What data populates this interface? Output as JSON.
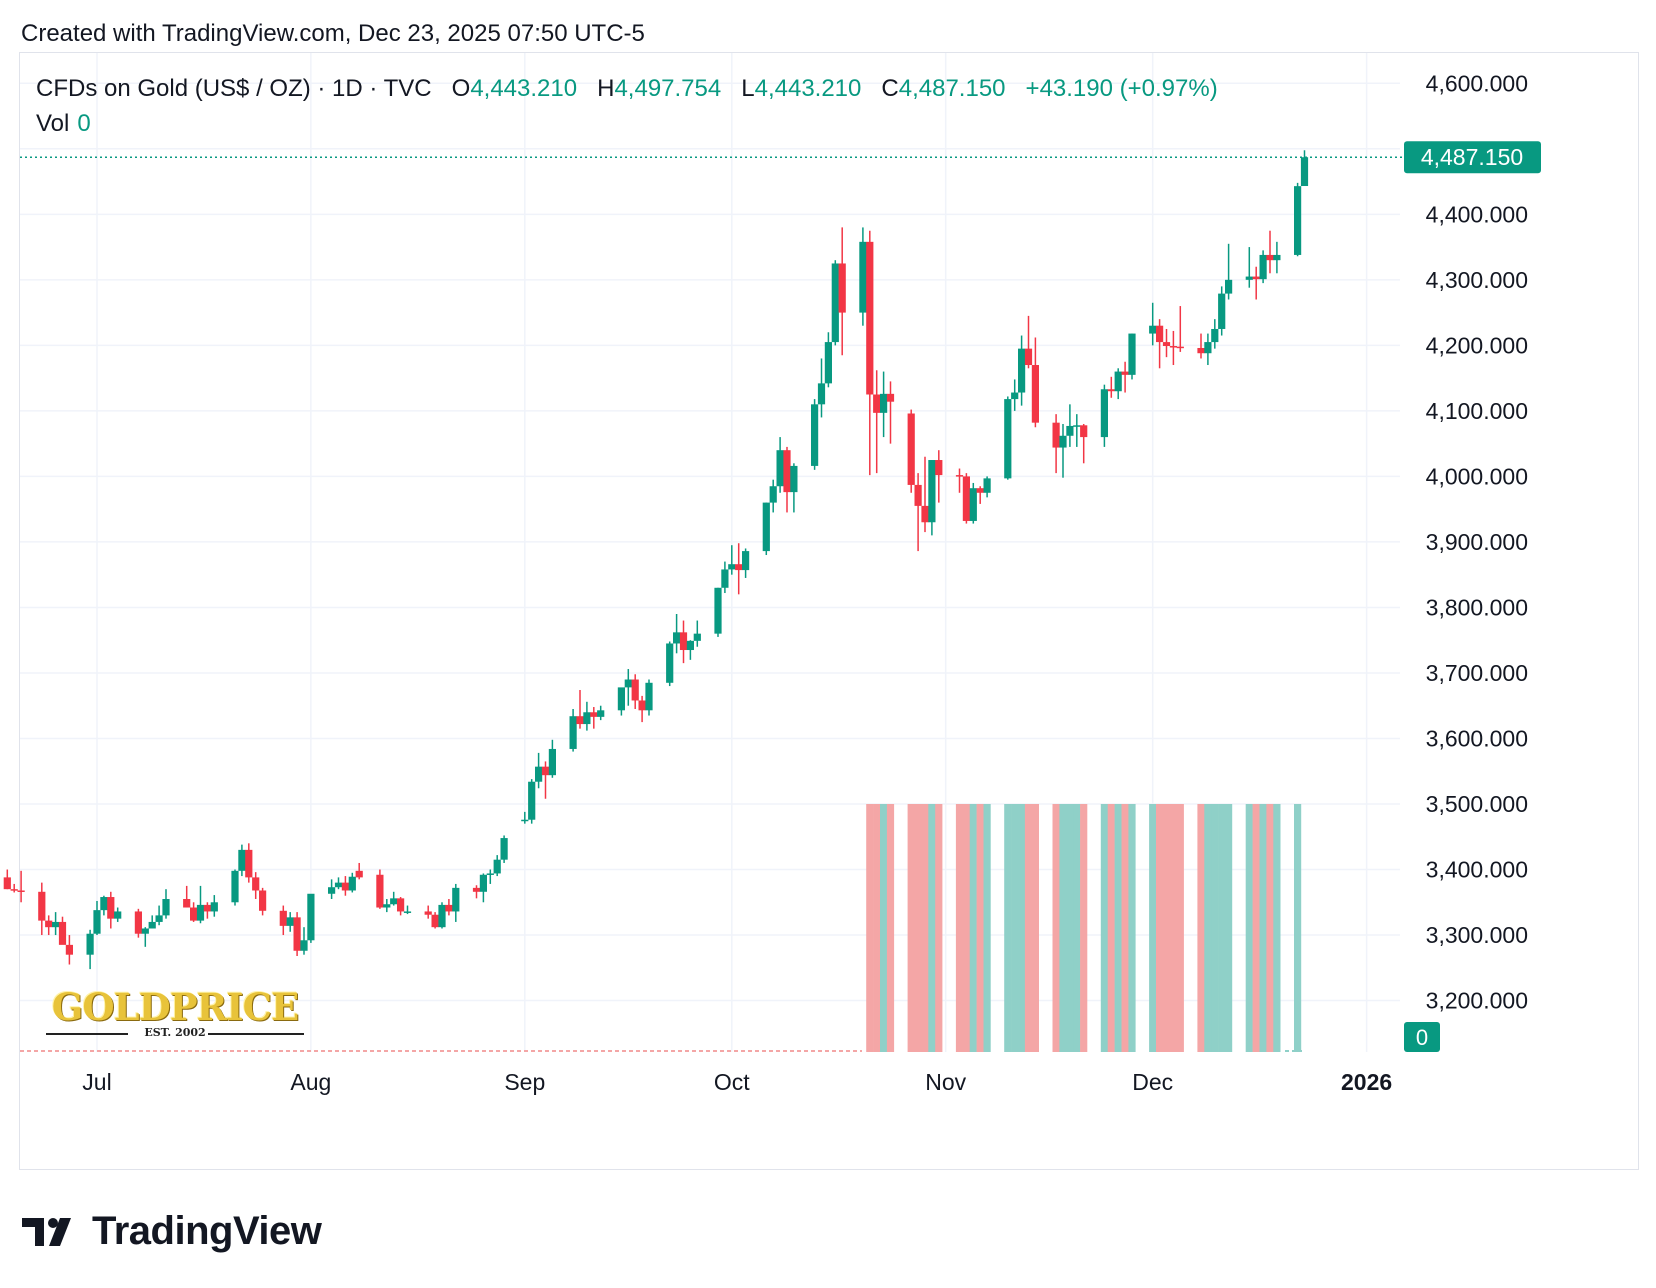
{
  "header": {
    "credit": "Created with TradingView.com, Dec 23, 2025 07:50 UTC-5"
  },
  "legend": {
    "symbol": "CFDs on Gold (US$ / OZ) · 1D · TVC",
    "open_label": "O",
    "open_value": "4,443.210",
    "high_label": "H",
    "high_value": "4,497.754",
    "low_label": "L",
    "low_value": "4,443.210",
    "close_label": "C",
    "close_value": "4,487.150",
    "change": "+43.190 (+0.97%)",
    "vol_label": "Vol",
    "vol_value": "0"
  },
  "watermark": {
    "brand": "GOLDPRICE",
    "tagline": "EST. 2002"
  },
  "footer": {
    "brand": "TradingView"
  },
  "colors": {
    "up": "#089981",
    "down": "#f23645",
    "vol_up": "#8fd0c8",
    "vol_down": "#f4a6a6",
    "grid": "#f0f3fa",
    "text": "#131722"
  },
  "chart_data": {
    "type": "candlestick",
    "timeframe": "1D",
    "ylim": [
      3120,
      4630
    ],
    "y_ticks": [
      3200,
      3300,
      3400,
      3500,
      3600,
      3700,
      3800,
      3900,
      4000,
      4100,
      4200,
      4300,
      4400,
      4600
    ],
    "y_tick_labels": [
      "3,200.000",
      "3,300.000",
      "3,400.000",
      "3,500.000",
      "3,600.000",
      "3,700.000",
      "3,800.000",
      "3,900.000",
      "4,000.000",
      "4,100.000",
      "4,200.000",
      "4,300.000",
      "4,400.000",
      "4,600.000"
    ],
    "x_tick_labels": [
      {
        "label": "Jul",
        "date": "2025-07-01"
      },
      {
        "label": "Aug",
        "date": "2025-08-01"
      },
      {
        "label": "Sep",
        "date": "2025-09-01"
      },
      {
        "label": "Oct",
        "date": "2025-10-01"
      },
      {
        "label": "Nov",
        "date": "2025-11-01"
      },
      {
        "label": "Dec",
        "date": "2025-12-01"
      },
      {
        "label": "2026",
        "date": "2026-01-01"
      }
    ],
    "last_price": 4487.15,
    "last_price_label": "4,487.150",
    "volume_label": "0",
    "volume_bars_from": "2025-10-21",
    "candles": [
      [
        "2025-06-18",
        3388,
        3400,
        3370,
        3370
      ],
      [
        "2025-06-19",
        3370,
        3378,
        3365,
        3368
      ],
      [
        "2025-06-20",
        3368,
        3398,
        3350,
        3366
      ],
      [
        "2025-06-23",
        3366,
        3380,
        3300,
        3322
      ],
      [
        "2025-06-24",
        3322,
        3330,
        3300,
        3312
      ],
      [
        "2025-06-25",
        3312,
        3335,
        3300,
        3320
      ],
      [
        "2025-06-26",
        3320,
        3328,
        3290,
        3285
      ],
      [
        "2025-06-27",
        3285,
        3300,
        3255,
        3270
      ],
      [
        "2025-06-30",
        3270,
        3308,
        3248,
        3302
      ],
      [
        "2025-07-01",
        3302,
        3352,
        3300,
        3338
      ],
      [
        "2025-07-02",
        3338,
        3360,
        3330,
        3358
      ],
      [
        "2025-07-03",
        3358,
        3366,
        3310,
        3325
      ],
      [
        "2025-07-04",
        3325,
        3342,
        3320,
        3336
      ],
      [
        "2025-07-07",
        3336,
        3340,
        3296,
        3302
      ],
      [
        "2025-07-08",
        3302,
        3312,
        3282,
        3310
      ],
      [
        "2025-07-09",
        3310,
        3330,
        3310,
        3320
      ],
      [
        "2025-07-10",
        3320,
        3345,
        3315,
        3330
      ],
      [
        "2025-07-11",
        3330,
        3370,
        3325,
        3355
      ],
      [
        "2025-07-14",
        3355,
        3375,
        3342,
        3342
      ],
      [
        "2025-07-15",
        3342,
        3350,
        3320,
        3322
      ],
      [
        "2025-07-16",
        3322,
        3375,
        3318,
        3346
      ],
      [
        "2025-07-17",
        3346,
        3350,
        3325,
        3336
      ],
      [
        "2025-07-18",
        3336,
        3361,
        3328,
        3350
      ],
      [
        "2025-07-21",
        3350,
        3400,
        3345,
        3398
      ],
      [
        "2025-07-22",
        3398,
        3438,
        3390,
        3430
      ],
      [
        "2025-07-23",
        3430,
        3440,
        3380,
        3388
      ],
      [
        "2025-07-24",
        3388,
        3396,
        3355,
        3368
      ],
      [
        "2025-07-25",
        3368,
        3372,
        3330,
        3337
      ],
      [
        "2025-07-28",
        3337,
        3345,
        3300,
        3314
      ],
      [
        "2025-07-29",
        3314,
        3335,
        3305,
        3327
      ],
      [
        "2025-07-30",
        3327,
        3335,
        3268,
        3276
      ],
      [
        "2025-07-31",
        3276,
        3312,
        3270,
        3292
      ],
      [
        "2025-08-01",
        3292,
        3355,
        3288,
        3363
      ],
      [
        "2025-08-04",
        3363,
        3385,
        3355,
        3373
      ],
      [
        "2025-08-05",
        3373,
        3388,
        3370,
        3380
      ],
      [
        "2025-08-06",
        3380,
        3390,
        3360,
        3368
      ],
      [
        "2025-08-07",
        3368,
        3395,
        3365,
        3389
      ],
      [
        "2025-08-08",
        3398,
        3410,
        3385,
        3388
      ],
      [
        "2025-08-11",
        3392,
        3400,
        3340,
        3342
      ],
      [
        "2025-08-12",
        3342,
        3355,
        3335,
        3347
      ],
      [
        "2025-08-13",
        3347,
        3366,
        3345,
        3356
      ],
      [
        "2025-08-14",
        3356,
        3358,
        3330,
        3336
      ],
      [
        "2025-08-15",
        3336,
        3345,
        3332,
        3336
      ],
      [
        "2025-08-18",
        3336,
        3345,
        3325,
        3331
      ],
      [
        "2025-08-19",
        3331,
        3335,
        3310,
        3312
      ],
      [
        "2025-08-20",
        3312,
        3350,
        3310,
        3346
      ],
      [
        "2025-08-21",
        3346,
        3355,
        3330,
        3336
      ],
      [
        "2025-08-22",
        3336,
        3378,
        3320,
        3372
      ],
      [
        "2025-08-25",
        3372,
        3376,
        3356,
        3366
      ],
      [
        "2025-08-26",
        3366,
        3394,
        3350,
        3392
      ],
      [
        "2025-08-27",
        3392,
        3400,
        3378,
        3394
      ],
      [
        "2025-08-28",
        3394,
        3422,
        3390,
        3415
      ],
      [
        "2025-08-29",
        3415,
        3452,
        3410,
        3448
      ],
      [
        "2025-09-01",
        3475,
        3488,
        3470,
        3476
      ],
      [
        "2025-09-02",
        3476,
        3538,
        3470,
        3534
      ],
      [
        "2025-09-03",
        3534,
        3578,
        3524,
        3557
      ],
      [
        "2025-09-04",
        3557,
        3565,
        3508,
        3544
      ],
      [
        "2025-09-05",
        3544,
        3598,
        3540,
        3584
      ],
      [
        "2025-09-08",
        3584,
        3645,
        3580,
        3634
      ],
      [
        "2025-09-09",
        3634,
        3674,
        3615,
        3622
      ],
      [
        "2025-09-10",
        3622,
        3656,
        3612,
        3640
      ],
      [
        "2025-09-11",
        3640,
        3648,
        3615,
        3633
      ],
      [
        "2025-09-12",
        3633,
        3650,
        3628,
        3643
      ],
      [
        "2025-09-15",
        3643,
        3668,
        3635,
        3678
      ],
      [
        "2025-09-16",
        3678,
        3706,
        3650,
        3690
      ],
      [
        "2025-09-17",
        3690,
        3698,
        3645,
        3658
      ],
      [
        "2025-09-18",
        3658,
        3665,
        3625,
        3643
      ],
      [
        "2025-09-19",
        3643,
        3690,
        3635,
        3685
      ],
      [
        "2025-09-22",
        3685,
        3748,
        3680,
        3745
      ],
      [
        "2025-09-23",
        3745,
        3790,
        3730,
        3762
      ],
      [
        "2025-09-24",
        3762,
        3780,
        3715,
        3735
      ],
      [
        "2025-09-25",
        3735,
        3750,
        3720,
        3749
      ],
      [
        "2025-09-26",
        3749,
        3780,
        3740,
        3760
      ],
      [
        "2025-09-29",
        3760,
        3830,
        3755,
        3830
      ],
      [
        "2025-09-30",
        3830,
        3870,
        3822,
        3858
      ],
      [
        "2025-10-01",
        3858,
        3895,
        3850,
        3866
      ],
      [
        "2025-10-02",
        3866,
        3898,
        3820,
        3857
      ],
      [
        "2025-10-03",
        3857,
        3890,
        3845,
        3886
      ],
      [
        "2025-10-06",
        3886,
        3960,
        3880,
        3960
      ],
      [
        "2025-10-07",
        3960,
        3995,
        3945,
        3985
      ],
      [
        "2025-10-08",
        3985,
        4060,
        3975,
        4040
      ],
      [
        "2025-10-09",
        4040,
        4045,
        3945,
        3976
      ],
      [
        "2025-10-10",
        3976,
        4020,
        3945,
        4016
      ],
      [
        "2025-10-13",
        4016,
        4118,
        4010,
        4110
      ],
      [
        "2025-10-14",
        4110,
        4180,
        4090,
        4142
      ],
      [
        "2025-10-15",
        4142,
        4220,
        4136,
        4205
      ],
      [
        "2025-10-16",
        4205,
        4330,
        4200,
        4325
      ],
      [
        "2025-10-17",
        4325,
        4380,
        4185,
        4250
      ],
      [
        "2025-10-20",
        4250,
        4380,
        4230,
        4358
      ],
      [
        "2025-10-21",
        4358,
        4375,
        4002,
        4125
      ],
      [
        "2025-10-22",
        4125,
        4162,
        4005,
        4097
      ],
      [
        "2025-10-23",
        4097,
        4160,
        4060,
        4126
      ],
      [
        "2025-10-24",
        4126,
        4145,
        4050,
        4114
      ],
      [
        "2025-10-27",
        4096,
        4102,
        3975,
        3987
      ],
      [
        "2025-10-28",
        3987,
        4005,
        3886,
        3955
      ],
      [
        "2025-10-29",
        3955,
        4030,
        3915,
        3930
      ],
      [
        "2025-10-30",
        3930,
        4025,
        3910,
        4025
      ],
      [
        "2025-10-31",
        4025,
        4040,
        3960,
        4002
      ],
      [
        "2025-11-03",
        4002,
        4012,
        3975,
        4000
      ],
      [
        "2025-11-04",
        4000,
        4005,
        3928,
        3932
      ],
      [
        "2025-11-05",
        3932,
        3990,
        3928,
        3982
      ],
      [
        "2025-11-06",
        3982,
        3985,
        3958,
        3975
      ],
      [
        "2025-11-07",
        3975,
        4000,
        3968,
        3997
      ],
      [
        "2025-11-10",
        3997,
        4122,
        3995,
        4118
      ],
      [
        "2025-11-11",
        4118,
        4148,
        4100,
        4128
      ],
      [
        "2025-11-12",
        4128,
        4215,
        4108,
        4195
      ],
      [
        "2025-11-13",
        4195,
        4245,
        4165,
        4170
      ],
      [
        "2025-11-14",
        4170,
        4212,
        4075,
        4082
      ],
      [
        "2025-11-17",
        4082,
        4095,
        4005,
        4044
      ],
      [
        "2025-11-18",
        4044,
        4080,
        3998,
        4062
      ],
      [
        "2025-11-19",
        4062,
        4110,
        4045,
        4077
      ],
      [
        "2025-11-20",
        4077,
        4095,
        4045,
        4078
      ],
      [
        "2025-11-21",
        4078,
        4080,
        4020,
        4060
      ],
      [
        "2025-11-24",
        4060,
        4140,
        4045,
        4133
      ],
      [
        "2025-11-25",
        4133,
        4152,
        4120,
        4130
      ],
      [
        "2025-11-26",
        4130,
        4165,
        4118,
        4160
      ],
      [
        "2025-11-27",
        4160,
        4175,
        4128,
        4155
      ],
      [
        "2025-11-28",
        4155,
        4218,
        4148,
        4218
      ],
      [
        "2025-12-01",
        4218,
        4265,
        4200,
        4230
      ],
      [
        "2025-12-02",
        4230,
        4240,
        4165,
        4205
      ],
      [
        "2025-12-03",
        4205,
        4225,
        4182,
        4199
      ],
      [
        "2025-12-04",
        4199,
        4222,
        4170,
        4198
      ],
      [
        "2025-12-05",
        4198,
        4260,
        4190,
        4196
      ],
      [
        "2025-12-08",
        4196,
        4218,
        4180,
        4188
      ],
      [
        "2025-12-09",
        4188,
        4218,
        4170,
        4205
      ],
      [
        "2025-12-10",
        4205,
        4240,
        4195,
        4225
      ],
      [
        "2025-12-11",
        4225,
        4290,
        4215,
        4279
      ],
      [
        "2025-12-12",
        4279,
        4355,
        4270,
        4300
      ],
      [
        "2025-12-15",
        4300,
        4350,
        4288,
        4305
      ],
      [
        "2025-12-16",
        4305,
        4320,
        4270,
        4301
      ],
      [
        "2025-12-17",
        4301,
        4345,
        4295,
        4338
      ],
      [
        "2025-12-18",
        4338,
        4375,
        4310,
        4330
      ],
      [
        "2025-12-19",
        4330,
        4358,
        4310,
        4338
      ],
      [
        "2025-12-22",
        4338,
        4448,
        4336,
        4443
      ],
      [
        "2025-12-23",
        4443.21,
        4497.754,
        4443.21,
        4487.15
      ]
    ]
  }
}
